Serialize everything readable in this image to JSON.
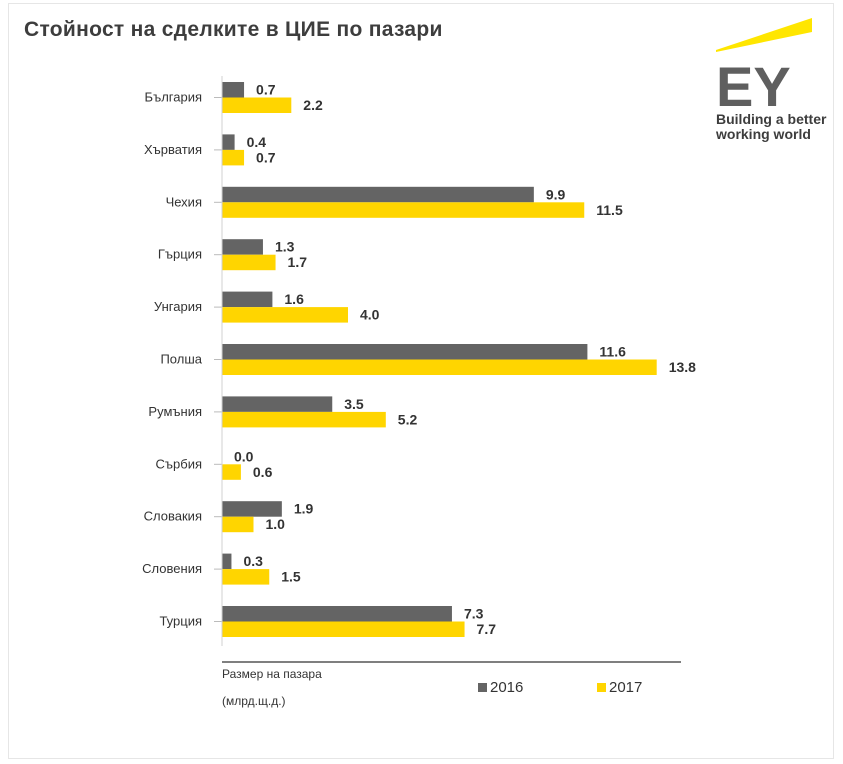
{
  "title": "Стойност на сделките в ЦИЕ по пазари",
  "logo": {
    "mark": "EY",
    "tagline_line1": "Building a better",
    "tagline_line2": "working world",
    "icon": "ey-logo-icon"
  },
  "axis_note": {
    "line1": "Размер на пазара",
    "line2": "(млрд.щ.д.)"
  },
  "colors": {
    "series_2016": "#646464",
    "series_2017": "#ffd500",
    "text": "#333333"
  },
  "chart_data": {
    "type": "bar",
    "orientation": "horizontal",
    "title": "Стойност на сделките в ЦИЕ по пазари",
    "categories": [
      "България",
      "Хърватия",
      "Чехия",
      "Гърция",
      "Унгария",
      "Полша",
      "Румъния",
      "Сърбия",
      "Словакия",
      "Словения",
      "Турция"
    ],
    "series": [
      {
        "name": "2016",
        "values": [
          0.7,
          0.4,
          9.9,
          1.3,
          1.6,
          11.6,
          3.5,
          0.0,
          1.9,
          0.3,
          7.3
        ]
      },
      {
        "name": "2017",
        "values": [
          2.2,
          0.7,
          11.5,
          1.7,
          4.0,
          13.8,
          5.2,
          0.6,
          1.0,
          1.5,
          7.7
        ]
      }
    ],
    "value_labels": [
      [
        "0.7",
        "0.4",
        "9.9",
        "1.3",
        "1.6",
        "11.6",
        "3.5",
        "0.0",
        "1.9",
        "0.3",
        "7.3"
      ],
      [
        "2.2",
        "0.7",
        "11.5",
        "1.7",
        "4.0",
        "13.8",
        "5.2",
        "0.6",
        "1.0",
        "1.5",
        "7.7"
      ]
    ],
    "xlabel": "Размер на пазара (млрд.щ.д.)",
    "ylabel": "",
    "xlim": [
      0,
      14
    ],
    "grid": false,
    "legend": "bottom"
  }
}
